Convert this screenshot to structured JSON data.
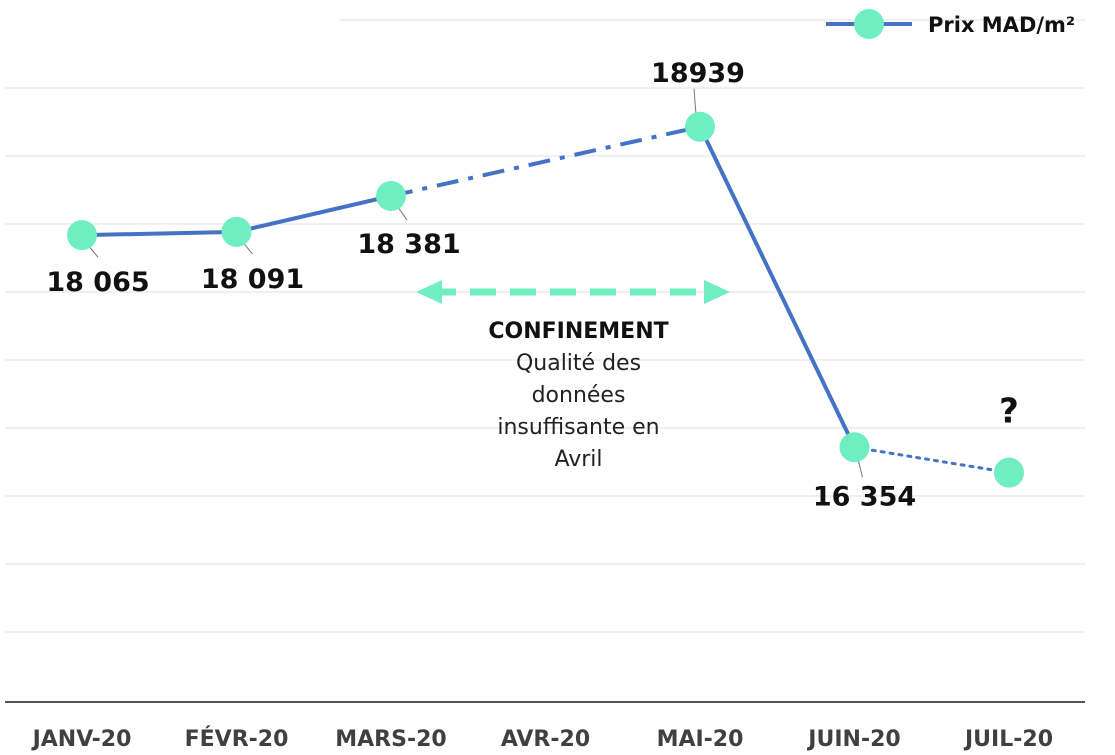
{
  "chart_data": {
    "type": "line",
    "categories": [
      "JANV-20",
      "FÉVR-20",
      "MARS-20",
      "AVR-20",
      "MAI-20",
      "JUIN-20",
      "JUIL-20"
    ],
    "series": [
      {
        "name": "Prix MAD/m²",
        "color": "#4472C4",
        "marker_color": "#6FEFC1",
        "points": [
          {
            "x": "JANV-20",
            "y": 18065,
            "label": "18 065"
          },
          {
            "x": "FÉVR-20",
            "y": 18091,
            "label": "18 091"
          },
          {
            "x": "MARS-20",
            "y": 18381,
            "label": "18 381"
          },
          {
            "x": "MAI-20",
            "y": 18939,
            "label": "18939"
          },
          {
            "x": "JUIN-20",
            "y": 16354,
            "label": "16 354"
          },
          {
            "x": "JUIL-20",
            "y": 16150,
            "label": "?"
          }
        ],
        "segment_styles": [
          "solid",
          "solid",
          "dash-dot",
          "solid",
          "dotted"
        ]
      }
    ],
    "ylim": [
      14300,
      19800
    ],
    "grid": true,
    "legend": {
      "position": "top-right",
      "label": "Prix MAD/m²"
    },
    "annotation": {
      "title": "CONFINEMENT",
      "lines": [
        "Qualité des",
        "données",
        "insuffisante en",
        "Avril"
      ],
      "arrow_color": "#6FEFC1",
      "arrow_span": [
        "MARS-20",
        "MAI-20"
      ]
    }
  }
}
